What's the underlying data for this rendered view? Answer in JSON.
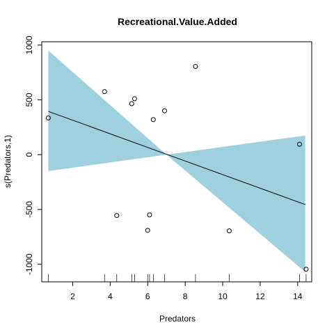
{
  "chart_data": {
    "type": "scatter",
    "title": "Recreational.Value.Added",
    "xlabel": "Predators",
    "ylabel": "s(Predators,1)",
    "xlim": [
      0.35,
      14.75
    ],
    "ylim": [
      -1160,
      1030
    ],
    "x_ticks": [
      "2",
      "4",
      "6",
      "8",
      "10",
      "12",
      "14"
    ],
    "y_ticks": [
      "-1000",
      "-500",
      "0",
      "500",
      "1000"
    ],
    "colors": {
      "band": "#9fd0e0",
      "line": "#000000",
      "points": "#000000"
    },
    "fit_line": {
      "x": [
        0.7,
        14.4
      ],
      "y": [
        395,
        -455
      ]
    },
    "confidence_band": {
      "x": [
        0.7,
        7.0,
        14.4
      ],
      "upper": [
        950,
        0,
        175
      ],
      "lower": [
        -150,
        0,
        -1070
      ]
    },
    "points": [
      {
        "x": 0.7,
        "y": 335
      },
      {
        "x": 3.7,
        "y": 575
      },
      {
        "x": 4.35,
        "y": -555
      },
      {
        "x": 5.15,
        "y": 465
      },
      {
        "x": 5.3,
        "y": 510
      },
      {
        "x": 6.0,
        "y": -690
      },
      {
        "x": 6.1,
        "y": -550
      },
      {
        "x": 6.3,
        "y": 320
      },
      {
        "x": 6.9,
        "y": 400
      },
      {
        "x": 8.55,
        "y": 805
      },
      {
        "x": 10.35,
        "y": -695
      },
      {
        "x": 14.1,
        "y": 95
      },
      {
        "x": 14.45,
        "y": -1045
      }
    ],
    "rug": [
      0.7,
      3.7,
      4.35,
      5.15,
      5.3,
      6.0,
      6.1,
      6.3,
      6.9,
      8.55,
      10.35,
      14.1,
      14.45
    ],
    "grid": false
  }
}
